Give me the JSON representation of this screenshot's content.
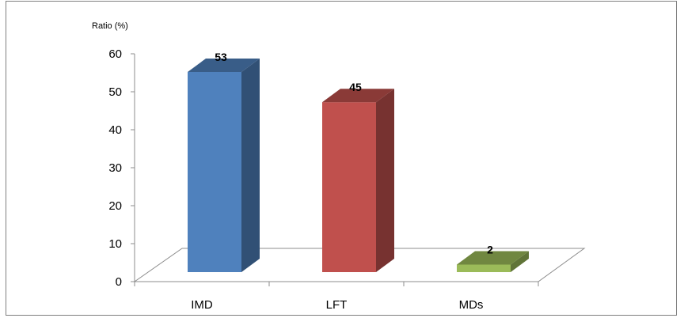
{
  "chart_data": {
    "type": "bar",
    "title": "",
    "ylabel": "Ratio (%)",
    "xlabel": "",
    "categories": [
      "IMD",
      "LFT",
      "MDs"
    ],
    "values": [
      53,
      45,
      2
    ],
    "data_labels": [
      "53",
      "45",
      "2"
    ],
    "yticks": [
      0,
      10,
      20,
      30,
      40,
      50,
      60
    ],
    "ylim": [
      0,
      60
    ],
    "colors": [
      "#4f81bd",
      "#c0504d",
      "#9bbb59"
    ],
    "legend": "none",
    "grid": false,
    "style": "3d-column"
  }
}
